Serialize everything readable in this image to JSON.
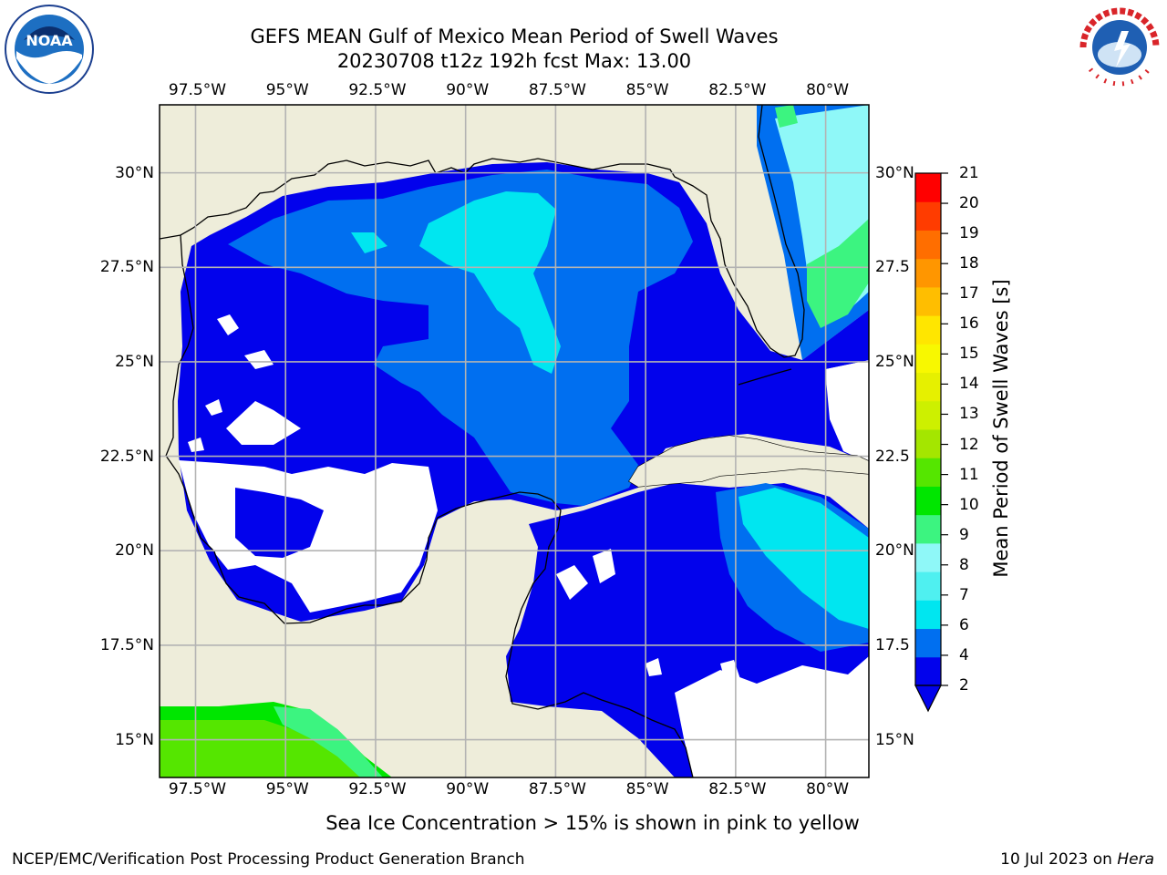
{
  "header": {
    "title_line1": "GEFS MEAN Gulf of Mexico Mean Period of Swell Waves",
    "title_line2": "20230708 t12z 192h fcst   Max: 13.00"
  },
  "logos": {
    "left": "noaa-logo",
    "right": "national-weather-service-logo"
  },
  "map": {
    "region": "Gulf of Mexico",
    "lon_range": [
      -98.5,
      -78.8
    ],
    "lat_range": [
      14.0,
      31.8
    ],
    "lon_ticks": [
      "97.5°W",
      "95°W",
      "92.5°W",
      "90°W",
      "87.5°W",
      "85°W",
      "82.5°W",
      "80°W"
    ],
    "lat_ticks_left": [
      "30°N",
      "27.5°N",
      "25°N",
      "22.5°N",
      "20°N",
      "17.5°N",
      "15°N"
    ],
    "lat_ticks_right": [
      "30°N",
      "27.5",
      "25°N",
      "22.5",
      "20°N",
      "17.5",
      "15°N"
    ],
    "colors": {
      "land": "#eeedda",
      "no_data": "#ffffff",
      "grid": "#b3b3b3",
      "coast": "#000000"
    }
  },
  "colorbar": {
    "label": "Mean Period of Swell Waves [s]",
    "min": 2,
    "max": 21,
    "extend": "min",
    "ticks": [
      "21",
      "20",
      "19",
      "18",
      "17",
      "16",
      "15",
      "14",
      "13",
      "12",
      "11",
      "10",
      "9",
      "8",
      "7",
      "6",
      "4",
      "2"
    ],
    "colors": [
      "#0202ec",
      "#006ff0",
      "#00e6f0",
      "#4ff0f0",
      "#8ff8f8",
      "#3cf480",
      "#00e600",
      "#55e600",
      "#a4e600",
      "#cdf000",
      "#e6f000",
      "#f8f800",
      "#ffe600",
      "#ffbe00",
      "#ff9600",
      "#ff6e00",
      "#ff3c00",
      "#ff0000"
    ]
  },
  "footer": {
    "note": "Sea Ice Concentration > 15% is shown in pink to yellow",
    "credit": "NCEP/EMC/Verification Post Processing Product Generation Branch",
    "date": "10 Jul 2023 on ",
    "host": "Hera"
  }
}
